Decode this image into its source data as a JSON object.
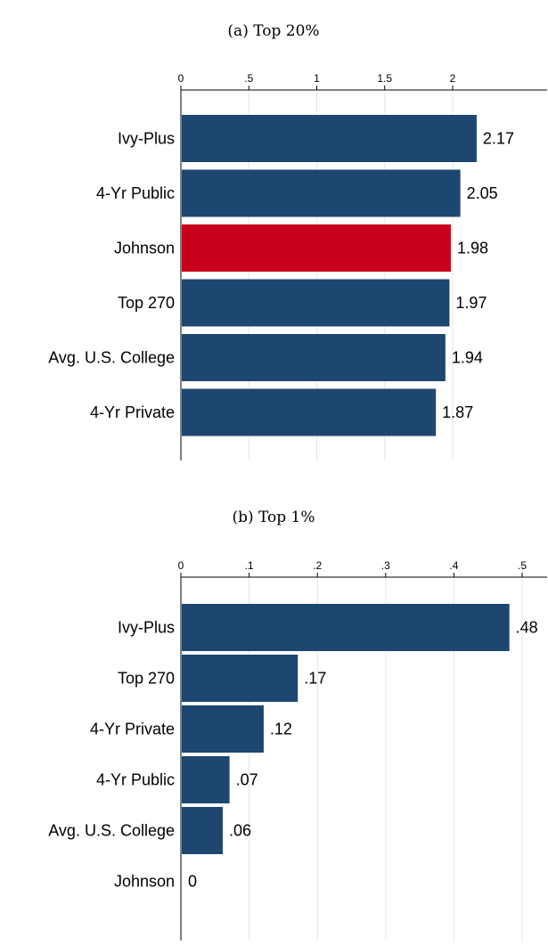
{
  "chart_data": [
    {
      "type": "bar",
      "orientation": "horizontal",
      "title": "(a) Top 20%",
      "xlabel": "",
      "ylabel": "",
      "xlim": [
        0,
        2.4
      ],
      "ticks": [
        0,
        0.5,
        1,
        1.5,
        2
      ],
      "tick_labels": [
        "0",
        ".5",
        "1",
        "1.5",
        "2"
      ],
      "x_axis_position": "top",
      "grid": true,
      "categories": [
        "Ivy-Plus",
        "4-Yr Public",
        "Johnson",
        "Top 270",
        "Avg. U.S. College",
        "4-Yr Private"
      ],
      "values": [
        2.17,
        2.05,
        1.98,
        1.97,
        1.94,
        1.87
      ],
      "value_labels": [
        "2.17",
        "2.05",
        "1.98",
        "1.97",
        "1.94",
        "1.87"
      ],
      "colors": [
        "#1d4670",
        "#1d4670",
        "#c8001a",
        "#1d4670",
        "#1d4670",
        "#1d4670"
      ]
    },
    {
      "type": "bar",
      "orientation": "horizontal",
      "title": "(b) Top 1%",
      "xlabel": "",
      "ylabel": "",
      "xlim": [
        0,
        0.54
      ],
      "ticks": [
        0,
        0.1,
        0.2,
        0.3,
        0.4,
        0.5
      ],
      "tick_labels": [
        "0",
        ".1",
        ".2",
        ".3",
        ".4",
        ".5"
      ],
      "x_axis_position": "top",
      "grid": true,
      "categories": [
        "Ivy-Plus",
        "Top 270",
        "4-Yr Private",
        "4-Yr Public",
        "Avg. U.S. College",
        "Johnson"
      ],
      "values": [
        0.48,
        0.17,
        0.12,
        0.07,
        0.06,
        0
      ],
      "value_labels": [
        ".48",
        ".17",
        ".12",
        ".07",
        ".06",
        "0"
      ],
      "colors": [
        "#1d4670",
        "#1d4670",
        "#1d4670",
        "#1d4670",
        "#1d4670",
        "#c8001a"
      ]
    }
  ]
}
